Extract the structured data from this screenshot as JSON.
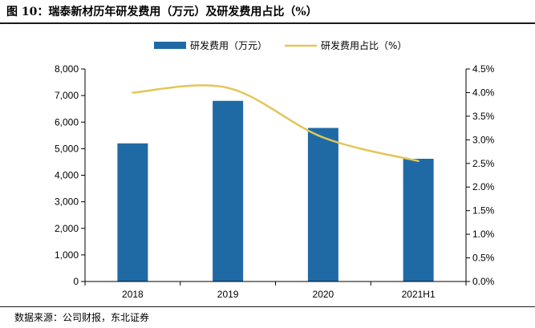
{
  "figure_title": "图 10：瑞泰新材历年研发费用（万元）及研发费用占比（%）",
  "source": "数据来源：公司财报，东北证券",
  "colors": {
    "bar": "#1f6aa5",
    "line": "#e3c65a",
    "axis": "#000000"
  },
  "chart_data": {
    "type": "bar",
    "categories": [
      "2018",
      "2019",
      "2020",
      "2021H1"
    ],
    "series": [
      {
        "name": "研发费用（万元）",
        "type": "bar",
        "axis": "left",
        "values": [
          5200,
          6800,
          5780,
          4620
        ]
      },
      {
        "name": "研发费用占比（%）",
        "type": "line",
        "axis": "right",
        "smooth": true,
        "values": [
          4.0,
          4.1,
          3.05,
          2.55
        ]
      }
    ],
    "y_left": {
      "min": 0,
      "max": 8000,
      "ticks": [
        "0",
        "1,000",
        "2,000",
        "3,000",
        "4,000",
        "5,000",
        "6,000",
        "7,000",
        "8,000"
      ]
    },
    "y_right": {
      "min": 0,
      "max": 4.5,
      "ticks": [
        "0.0%",
        "0.5%",
        "1.0%",
        "1.5%",
        "2.0%",
        "2.5%",
        "3.0%",
        "3.5%",
        "4.0%",
        "4.5%"
      ]
    },
    "legend_position": "top-center",
    "grid": false
  }
}
